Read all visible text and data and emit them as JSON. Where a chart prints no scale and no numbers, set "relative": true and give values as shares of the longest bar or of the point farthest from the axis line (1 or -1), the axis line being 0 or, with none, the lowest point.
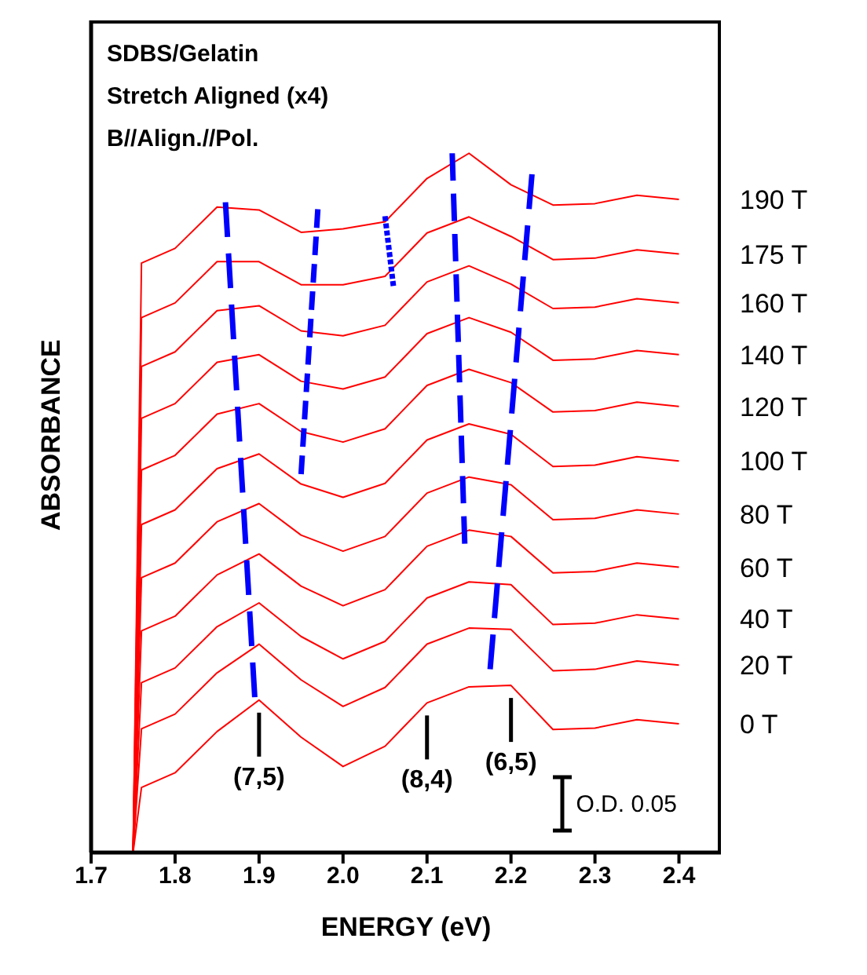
{
  "chart_data": {
    "type": "line",
    "title": "SDBS/Gelatin",
    "subtitle": "Stretch Aligned (x4)",
    "xlabel": "ENERGY (eV)",
    "ylabel": "ABSORBANCE",
    "relative": true,
    "xlim": [
      1.7,
      2.45
    ],
    "xticks": [
      1.7,
      1.8,
      1.9,
      {
        "value": 2,
        "label": "2.0"
      },
      2.1,
      2.2,
      2.3,
      2.4
    ],
    "x": [
      1.75,
      1.76,
      1.8,
      1.85,
      1.9,
      1.95,
      2.0,
      2.05,
      2.1,
      2.15,
      2.2,
      2.25,
      2.3,
      2.35,
      2.4
    ],
    "series": [
      {
        "name": "0 T",
        "color": "#ff0000",
        "values": [
          0,
          0.093,
          0.114,
          0.173,
          0.218,
          0.165,
          0.123,
          0.152,
          0.214,
          0.237,
          0.239,
          0.176,
          0.178,
          0.19,
          0.184
        ]
      },
      {
        "name": "20 T",
        "color": "#ff0000",
        "values": [
          0,
          0.177,
          0.198,
          0.257,
          0.298,
          0.247,
          0.209,
          0.236,
          0.298,
          0.321,
          0.319,
          0.26,
          0.262,
          0.274,
          0.268
        ]
      },
      {
        "name": "40 T",
        "color": "#ff0000",
        "values": [
          0,
          0.243,
          0.264,
          0.323,
          0.357,
          0.309,
          0.277,
          0.302,
          0.364,
          0.387,
          0.383,
          0.326,
          0.328,
          0.34,
          0.334
        ]
      },
      {
        "name": "60 T",
        "color": "#ff0000",
        "values": [
          0,
          0.317,
          0.338,
          0.397,
          0.427,
          0.381,
          0.353,
          0.376,
          0.438,
          0.461,
          0.452,
          0.4,
          0.402,
          0.414,
          0.408
        ]
      },
      {
        "name": "80 T",
        "color": "#ff0000",
        "values": [
          0,
          0.393,
          0.414,
          0.473,
          0.499,
          0.454,
          0.431,
          0.452,
          0.514,
          0.537,
          0.526,
          0.476,
          0.478,
          0.49,
          0.484
        ]
      },
      {
        "name": "100 T",
        "color": "#ff0000",
        "values": [
          0,
          0.469,
          0.49,
          0.549,
          0.57,
          0.527,
          0.508,
          0.528,
          0.59,
          0.613,
          0.598,
          0.552,
          0.554,
          0.566,
          0.56
        ]
      },
      {
        "name": "120 T",
        "color": "#ff0000",
        "values": [
          0,
          0.547,
          0.568,
          0.627,
          0.642,
          0.602,
          0.587,
          0.606,
          0.668,
          0.691,
          0.672,
          0.63,
          0.632,
          0.644,
          0.638
        ]
      },
      {
        "name": "140 T",
        "color": "#ff0000",
        "values": [
          0,
          0.621,
          0.642,
          0.701,
          0.712,
          0.674,
          0.663,
          0.68,
          0.742,
          0.765,
          0.744,
          0.704,
          0.706,
          0.718,
          0.712
        ]
      },
      {
        "name": "160 T",
        "color": "#ff0000",
        "values": [
          0,
          0.695,
          0.716,
          0.775,
          0.782,
          0.746,
          0.739,
          0.754,
          0.816,
          0.839,
          0.813,
          0.778,
          0.78,
          0.792,
          0.786
        ]
      },
      {
        "name": "175 T",
        "color": "#ff0000",
        "values": [
          0,
          0.765,
          0.786,
          0.845,
          0.845,
          0.812,
          0.812,
          0.824,
          0.886,
          0.909,
          0.881,
          0.848,
          0.85,
          0.862,
          0.856
        ]
      },
      {
        "name": "190 T",
        "color": "#ff0000",
        "values": [
          0,
          0.843,
          0.864,
          0.923,
          0.919,
          0.887,
          0.892,
          0.902,
          0.964,
          1.0,
          0.955,
          0.926,
          0.928,
          0.94,
          0.934
        ]
      },
      {
        "color": "#0000ff",
        "line_style": "dashed",
        "x": [
          1.86,
          1.895
        ],
        "values": [
          0.93,
          0.22
        ]
      },
      {
        "color": "#0000ff",
        "line_style": "dashed",
        "x": [
          1.97,
          1.95
        ],
        "values": [
          0.92,
          0.54
        ]
      },
      {
        "color": "#0000ff",
        "line_style": "dashed",
        "x": [
          2.05,
          2.06
        ],
        "values": [
          0.91,
          0.81
        ]
      },
      {
        "color": "#0000ff",
        "line_style": "dashed",
        "x": [
          2.13,
          2.145
        ],
        "values": [
          1.0,
          0.44
        ]
      },
      {
        "color": "#0000ff",
        "line_style": "dashed",
        "x": [
          2.225,
          2.175
        ],
        "values": [
          0.97,
          0.26
        ]
      }
    ],
    "annotations": [
      "B//Align.//Pol.",
      {
        "text": "(7,5)",
        "x": 1.9,
        "y": 0.218
      },
      {
        "text": "(8,4)",
        "x": 2.1,
        "y": 0.214
      },
      {
        "text": "(6,5)",
        "x": 2.2,
        "y": 0.239
      },
      "O.D. 0.05"
    ]
  }
}
